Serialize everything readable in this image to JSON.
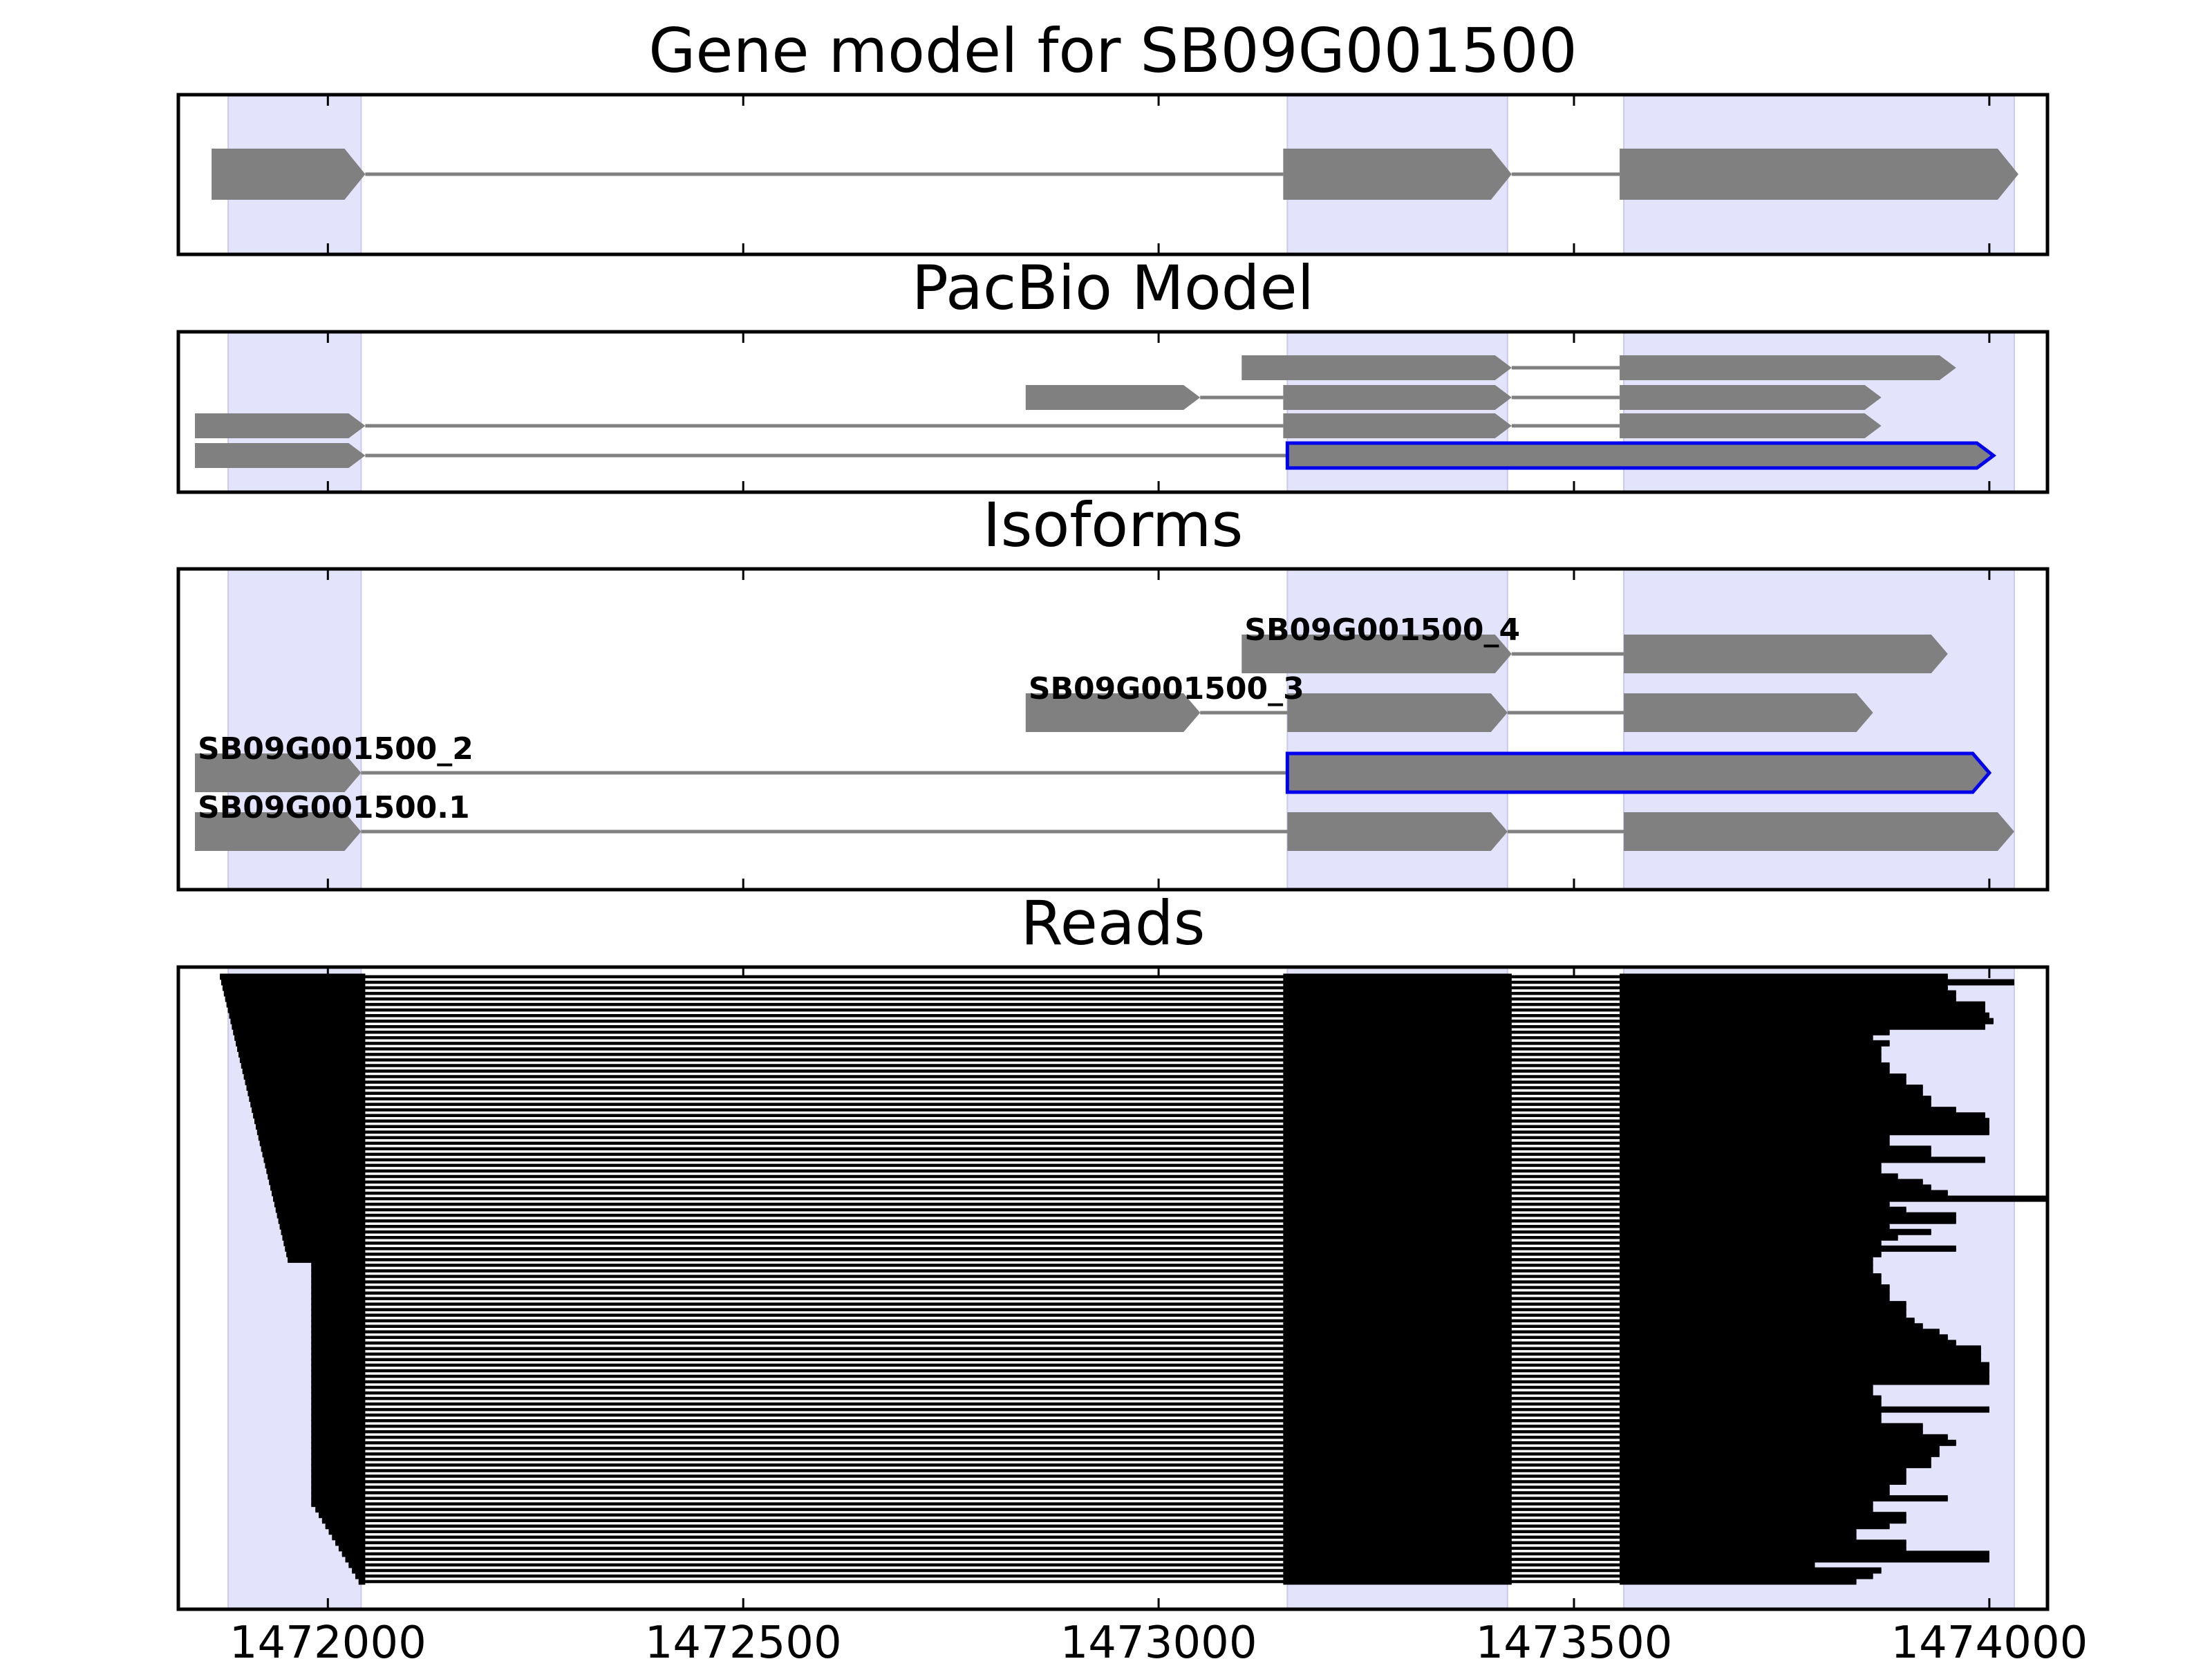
{
  "chart_data": {
    "type": "gene-model",
    "xlim": [
      1471820,
      1474070
    ],
    "x_ticks": [
      1472000,
      1472500,
      1473000,
      1473500,
      1474000
    ],
    "x_tick_labels": [
      "1472000",
      "1472500",
      "1473000",
      "1473500",
      "1474000"
    ],
    "colors": {
      "feature": "#808080",
      "highlight": "#0000ee",
      "exon_shade": "#e3e3fb",
      "read": "#000000"
    },
    "shaded_exons": [
      [
        1471880,
        1472040
      ],
      [
        1473155,
        1473420
      ],
      [
        1473560,
        1474030
      ]
    ],
    "panels": [
      {
        "key": "gene_model",
        "title": "Gene model for SB09G001500",
        "tracks": [
          {
            "label": "",
            "highlight": false,
            "exons": [
              [
                1471860,
                1472045
              ],
              [
                1473150,
                1473425
              ],
              [
                1473555,
                1474035
              ]
            ]
          }
        ]
      },
      {
        "key": "pacbio",
        "title": "PacBio Model",
        "tracks": [
          {
            "label": "",
            "highlight": false,
            "exons": [
              [
                1473100,
                1473425
              ],
              [
                1473555,
                1473960
              ]
            ]
          },
          {
            "label": "",
            "highlight": false,
            "exons": [
              [
                1472840,
                1473050
              ],
              [
                1473150,
                1473425
              ],
              [
                1473555,
                1473870
              ]
            ]
          },
          {
            "label": "",
            "highlight": false,
            "exons": [
              [
                1471840,
                1472045
              ],
              [
                1473150,
                1473425
              ],
              [
                1473555,
                1473870
              ]
            ]
          },
          {
            "label": "",
            "highlight": true,
            "exons": [
              [
                1471840,
                1472045
              ],
              [
                1473155,
                1474005
              ]
            ]
          }
        ]
      },
      {
        "key": "isoforms",
        "title": "Isoforms",
        "tracks": [
          {
            "label": "SB09G001500_4",
            "highlight": false,
            "exons": [
              [
                1473100,
                1473425
              ],
              [
                1473560,
                1473950
              ]
            ]
          },
          {
            "label": "SB09G001500_3",
            "highlight": false,
            "exons": [
              [
                1472840,
                1473050
              ],
              [
                1473155,
                1473420
              ],
              [
                1473560,
                1473860
              ]
            ]
          },
          {
            "label": "SB09G001500_2",
            "highlight": true,
            "exons": [
              [
                1471840,
                1472040
              ],
              [
                1473155,
                1474000
              ]
            ]
          },
          {
            "label": "SB09G001500.1",
            "highlight": false,
            "exons": [
              [
                1471840,
                1472040
              ],
              [
                1473155,
                1473420
              ],
              [
                1473560,
                1474030
              ]
            ]
          }
        ]
      },
      {
        "key": "reads",
        "title": "Reads",
        "read_count": 110,
        "read_ends": [
          1473950,
          1474030,
          1473950,
          1473960,
          1473960,
          1473995,
          1473995,
          1474000,
          1474005,
          1473995,
          1473880,
          1473860,
          1473880,
          1473870,
          1473870,
          1473870,
          1473880,
          1473880,
          1473900,
          1473900,
          1473920,
          1473920,
          1473930,
          1473930,
          1473960,
          1473995,
          1474000,
          1474000,
          1474000,
          1473880,
          1473880,
          1473930,
          1473930,
          1473995,
          1473870,
          1473870,
          1473890,
          1473920,
          1473930,
          1473950,
          1474070,
          1473880,
          1473900,
          1473960,
          1473960,
          1473880,
          1473930,
          1473890,
          1473870,
          1473960,
          1473870,
          1473860,
          1473860,
          1473860,
          1473870,
          1473870,
          1473880,
          1473880,
          1473880,
          1473900,
          1473900,
          1473900,
          1473910,
          1473920,
          1473940,
          1473950,
          1473960,
          1473990,
          1473990,
          1473990,
          1474000,
          1474000,
          1474000,
          1474000,
          1473860,
          1473860,
          1473870,
          1473870,
          1474000,
          1473870,
          1473870,
          1473920,
          1473920,
          1473950,
          1473960,
          1473940,
          1473940,
          1473930,
          1473930,
          1473900,
          1473900,
          1473900,
          1473880,
          1473880,
          1473950,
          1473860,
          1473860,
          1473900,
          1473900,
          1473880,
          1473840,
          1473840,
          1473900,
          1473900,
          1474000,
          1474000,
          1473790,
          1473870,
          1473860,
          1473840
        ]
      }
    ]
  }
}
